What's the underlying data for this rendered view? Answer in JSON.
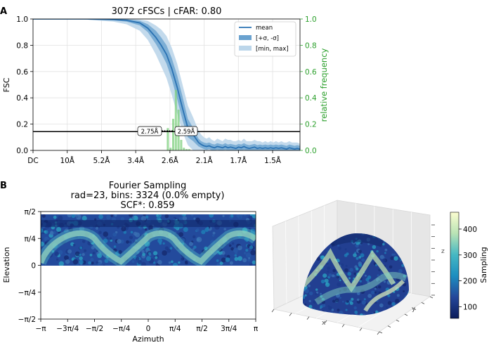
{
  "panel_a": {
    "letter": "A"
  },
  "panel_b": {
    "letter": "B"
  },
  "colors": {
    "mean": "#2a72b3",
    "sigma": "#6aa2cf",
    "minmax": "#bcd6ea",
    "histogram": "#7fd07f",
    "right_axis": "#2ca02c",
    "threshold": "#000000"
  },
  "chart_data": [
    {
      "type": "line",
      "title": "3072 cFSCs | cFAR: 0.80",
      "ylabel": "FSC",
      "y2label": "relative frequency",
      "ylim": [
        0,
        1.0
      ],
      "y2lim": [
        0,
        1.0
      ],
      "yticks": [
        "0.0",
        "0.2",
        "0.4",
        "0.6",
        "0.8",
        "1.0"
      ],
      "y2ticks": [
        "0.0",
        "0.2",
        "0.4",
        "0.6",
        "0.8",
        "1.0"
      ],
      "xtick_labels": [
        "DC",
        "10Å",
        "5.2Å",
        "3.4Å",
        "2.6Å",
        "2.1Å",
        "1.7Å",
        "1.5Å"
      ],
      "xlim": [
        0,
        1
      ],
      "grid": true,
      "legend_position": "top-right",
      "legend": [
        "mean",
        "[+σ, -σ]",
        "[min, max]"
      ],
      "threshold": 0.143,
      "threshold_labels": [
        "2.75Å",
        "2.59Å"
      ],
      "x": [
        0,
        0.1,
        0.2,
        0.3,
        0.35,
        0.4,
        0.43,
        0.46,
        0.48,
        0.5,
        0.52,
        0.54,
        0.56,
        0.58,
        0.6,
        0.61,
        0.62,
        0.63,
        0.64,
        0.65,
        0.66,
        0.67,
        0.68,
        0.69,
        0.7,
        0.71,
        0.72,
        0.73,
        0.74,
        0.75,
        0.76,
        0.77,
        0.78,
        0.79,
        0.8,
        0.81,
        0.82,
        0.83,
        0.84,
        0.85,
        0.86,
        0.87,
        0.88,
        0.89,
        0.9,
        0.91,
        0.92,
        0.93,
        0.94,
        0.95,
        0.96,
        0.97,
        0.98,
        0.99,
        1.0
      ],
      "mean": [
        1.0,
        1.0,
        1.0,
        0.995,
        0.99,
        0.97,
        0.93,
        0.86,
        0.8,
        0.73,
        0.62,
        0.48,
        0.32,
        0.17,
        0.12,
        0.09,
        0.06,
        0.045,
        0.035,
        0.03,
        0.035,
        0.025,
        0.02,
        0.03,
        0.025,
        0.02,
        0.03,
        0.02,
        0.025,
        0.02,
        0.015,
        0.025,
        0.02,
        0.03,
        0.02,
        0.015,
        0.02,
        0.025,
        0.015,
        0.02,
        0.015,
        0.02,
        0.015,
        0.02,
        0.015,
        0.02,
        0.015,
        0.02,
        0.015,
        0.01,
        0.02,
        0.015,
        0.01,
        0.015,
        0.01
      ],
      "sigma_upper": [
        1.0,
        1.0,
        1.0,
        1.0,
        0.998,
        0.985,
        0.96,
        0.91,
        0.86,
        0.8,
        0.7,
        0.57,
        0.41,
        0.24,
        0.17,
        0.13,
        0.09,
        0.07,
        0.06,
        0.055,
        0.06,
        0.05,
        0.045,
        0.055,
        0.05,
        0.045,
        0.055,
        0.045,
        0.05,
        0.045,
        0.04,
        0.05,
        0.045,
        0.055,
        0.045,
        0.04,
        0.045,
        0.05,
        0.04,
        0.045,
        0.04,
        0.045,
        0.04,
        0.045,
        0.04,
        0.045,
        0.04,
        0.045,
        0.04,
        0.035,
        0.045,
        0.04,
        0.035,
        0.04,
        0.035
      ],
      "sigma_lower": [
        1.0,
        1.0,
        1.0,
        0.99,
        0.98,
        0.95,
        0.9,
        0.81,
        0.74,
        0.66,
        0.54,
        0.39,
        0.23,
        0.1,
        0.07,
        0.05,
        0.03,
        0.02,
        0.01,
        0.005,
        0.01,
        0.0,
        0.0,
        0.005,
        0.0,
        0.0,
        0.005,
        0.0,
        0.0,
        0.0,
        0.0,
        0.0,
        0.0,
        0.005,
        0.0,
        0.0,
        0.0,
        0.0,
        0.0,
        0.0,
        0.0,
        0.0,
        0.0,
        0.0,
        0.0,
        0.0,
        0.0,
        0.0,
        0.0,
        0.0,
        0.0,
        0.0,
        0.0,
        0.0,
        0.0
      ],
      "max": [
        1.0,
        1.0,
        1.0,
        1.0,
        1.0,
        0.995,
        0.985,
        0.95,
        0.92,
        0.87,
        0.78,
        0.66,
        0.5,
        0.34,
        0.25,
        0.2,
        0.15,
        0.12,
        0.1,
        0.09,
        0.1,
        0.08,
        0.07,
        0.09,
        0.08,
        0.07,
        0.09,
        0.08,
        0.08,
        0.07,
        0.07,
        0.08,
        0.07,
        0.09,
        0.07,
        0.07,
        0.07,
        0.08,
        0.07,
        0.07,
        0.06,
        0.07,
        0.06,
        0.07,
        0.06,
        0.07,
        0.06,
        0.07,
        0.06,
        0.06,
        0.07,
        0.06,
        0.06,
        0.06,
        0.05
      ],
      "min": [
        1.0,
        1.0,
        0.995,
        0.98,
        0.96,
        0.91,
        0.84,
        0.73,
        0.64,
        0.55,
        0.42,
        0.28,
        0.14,
        0.04,
        0.0,
        0.0,
        0.0,
        0.0,
        0.0,
        0.0,
        0.0,
        0.0,
        0.0,
        0.0,
        0.0,
        0.0,
        0.0,
        0.0,
        0.0,
        0.0,
        0.0,
        0.0,
        0.0,
        0.0,
        0.0,
        0.0,
        0.0,
        0.0,
        0.0,
        0.0,
        0.0,
        0.0,
        0.0,
        0.0,
        0.0,
        0.0,
        0.0,
        0.0,
        0.0,
        0.0,
        0.0,
        0.0,
        0.0,
        0.0,
        0.0
      ],
      "histogram": {
        "x": [
          0.505,
          0.515,
          0.525,
          0.535,
          0.545,
          0.555,
          0.565,
          0.575,
          0.585
        ],
        "values": [
          0.17,
          0.02,
          0.24,
          0.46,
          0.31,
          0.08,
          0.02,
          0.01,
          0.01
        ]
      }
    },
    {
      "type": "heatmap",
      "title": "Fourier Sampling",
      "subtitle": "rad=23, bins: 3324 (0.0% empty)",
      "subtitle2": "SCF*: 0.859",
      "xlabel": "Azimuth",
      "ylabel": "Elevation",
      "xticks": [
        "−π",
        "−3π/4",
        "−π/2",
        "−π/4",
        "0",
        "π/4",
        "π/2",
        "3π/4",
        "π"
      ],
      "yticks": [
        "−π/2",
        "−π/4",
        "0",
        "π/4",
        "π/2"
      ],
      "xlim": [
        "−π",
        "π"
      ],
      "ylim": [
        "−π/2",
        "π/2"
      ]
    },
    {
      "type": "heatmap",
      "projection": "3d-hemisphere",
      "axis_labels": [
        "x",
        "y",
        "z"
      ],
      "colorbar_label": "Sampling",
      "colorbar_ticks": [
        100,
        200,
        300,
        400
      ],
      "colorbar_range": [
        55,
        465
      ],
      "colormap": "YlGnBu"
    }
  ]
}
